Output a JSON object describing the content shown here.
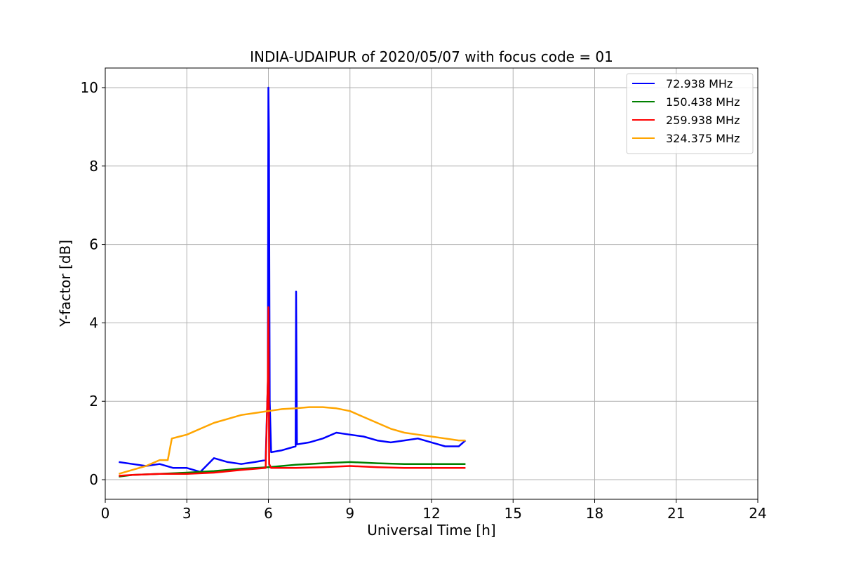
{
  "chart_data": {
    "type": "line",
    "title": "INDIA-UDAIPUR of 2020/05/07 with focus code = 01",
    "xlabel": "Universal Time [h]",
    "ylabel": "Y-factor [dB]",
    "xlim": [
      0,
      24
    ],
    "ylim": [
      -0.5,
      10.5
    ],
    "xticks": [
      "0",
      "3",
      "6",
      "9",
      "12",
      "15",
      "18",
      "21",
      "24"
    ],
    "yticks": [
      "0",
      "2",
      "4",
      "6",
      "8",
      "10"
    ],
    "grid": true,
    "legend_position": "top-right",
    "series": [
      {
        "name": " 72.938 MHz",
        "color": "#0000ff",
        "x": [
          0.5,
          1.0,
          1.5,
          2.0,
          2.5,
          3.0,
          3.5,
          4.0,
          4.5,
          5.0,
          5.5,
          5.9,
          5.98,
          6.0,
          6.02,
          6.05,
          6.1,
          6.5,
          7.0,
          7.02,
          7.05,
          7.5,
          8.0,
          8.5,
          9.0,
          9.5,
          10.0,
          10.5,
          11.0,
          11.5,
          12.0,
          12.5,
          13.0,
          13.25
        ],
        "y": [
          0.45,
          0.4,
          0.35,
          0.4,
          0.3,
          0.3,
          0.2,
          0.55,
          0.45,
          0.4,
          0.45,
          0.5,
          2.5,
          10.0,
          8.8,
          2.0,
          0.7,
          0.75,
          0.85,
          4.8,
          0.9,
          0.95,
          1.05,
          1.2,
          1.15,
          1.1,
          1.0,
          0.95,
          1.0,
          1.05,
          0.95,
          0.85,
          0.85,
          1.0
        ]
      },
      {
        "name": "150.438 MHz",
        "color": "#008000",
        "x": [
          0.5,
          1.0,
          2.0,
          3.0,
          4.0,
          5.0,
          6.0,
          7.0,
          8.0,
          9.0,
          10.0,
          11.0,
          12.0,
          13.0,
          13.25
        ],
        "y": [
          0.08,
          0.12,
          0.15,
          0.18,
          0.22,
          0.28,
          0.32,
          0.38,
          0.42,
          0.45,
          0.42,
          0.4,
          0.4,
          0.4,
          0.4
        ]
      },
      {
        "name": "259.938 MHz",
        "color": "#ff0000",
        "x": [
          0.5,
          1.0,
          2.0,
          3.0,
          4.0,
          5.0,
          5.9,
          5.98,
          6.0,
          6.03,
          6.1,
          7.0,
          8.0,
          9.0,
          10.0,
          11.0,
          12.0,
          13.0,
          13.25
        ],
        "y": [
          0.1,
          0.12,
          0.15,
          0.15,
          0.18,
          0.25,
          0.3,
          2.5,
          4.4,
          0.4,
          0.3,
          0.3,
          0.32,
          0.35,
          0.32,
          0.3,
          0.3,
          0.3,
          0.3
        ]
      },
      {
        "name": "324.375 MHz",
        "color": "#ffa500",
        "x": [
          0.5,
          1.0,
          1.5,
          2.0,
          2.3,
          2.45,
          3.0,
          3.5,
          4.0,
          4.5,
          5.0,
          5.5,
          6.0,
          6.5,
          7.0,
          7.5,
          8.0,
          8.5,
          9.0,
          9.5,
          10.0,
          10.5,
          11.0,
          11.5,
          12.0,
          12.5,
          13.0,
          13.25
        ],
        "y": [
          0.15,
          0.25,
          0.35,
          0.5,
          0.5,
          1.05,
          1.15,
          1.3,
          1.45,
          1.55,
          1.65,
          1.7,
          1.75,
          1.8,
          1.82,
          1.85,
          1.85,
          1.82,
          1.75,
          1.6,
          1.45,
          1.3,
          1.2,
          1.15,
          1.1,
          1.05,
          1.0,
          1.0
        ]
      }
    ]
  }
}
